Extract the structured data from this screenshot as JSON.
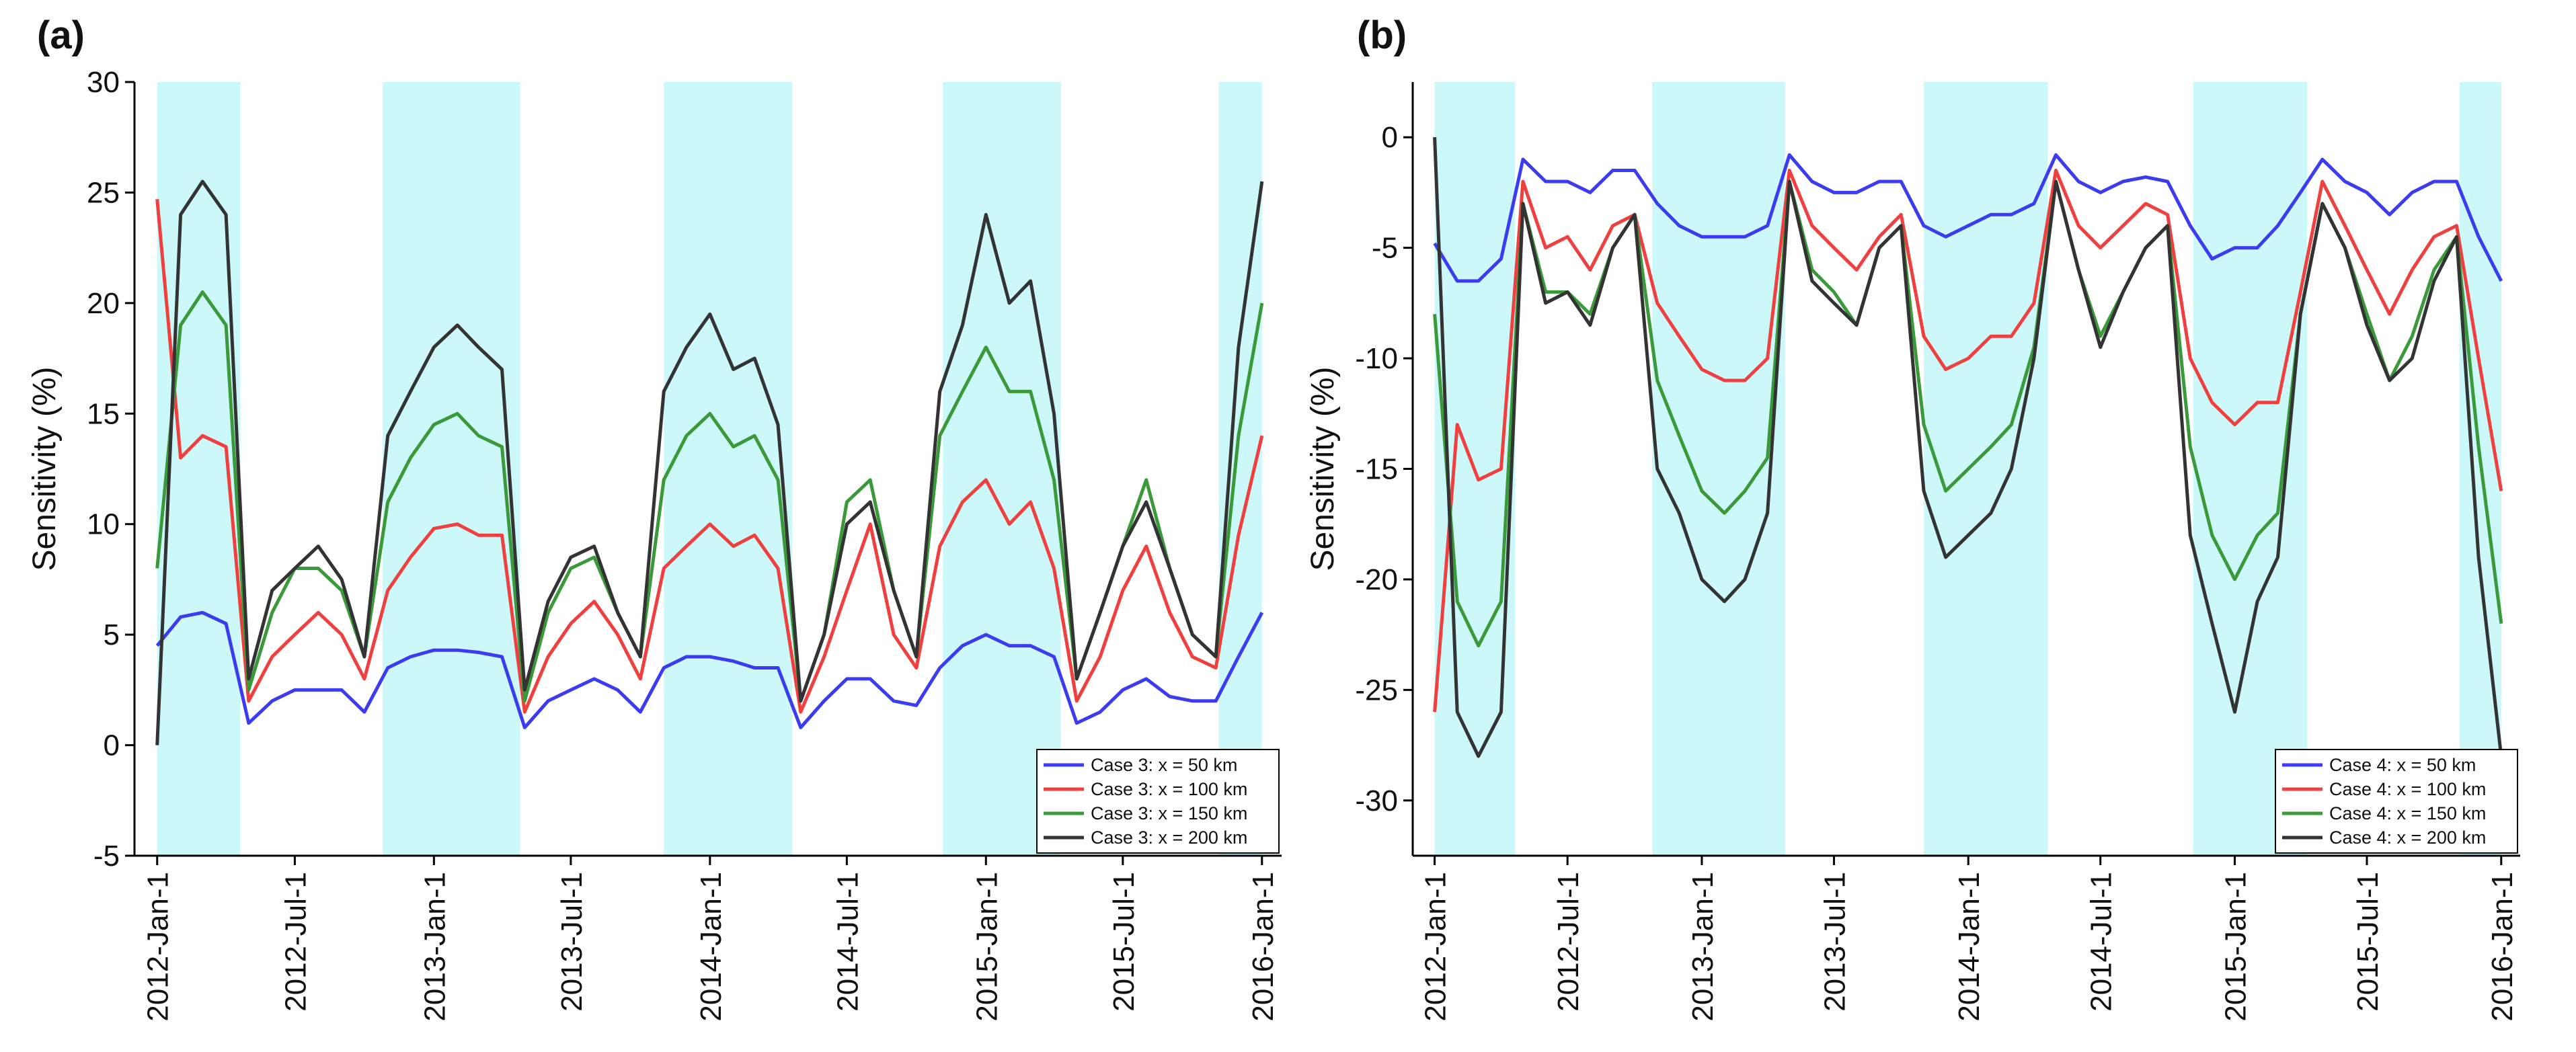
{
  "chart_data": [
    {
      "type": "line",
      "panel_label": "(a)",
      "y_label": "Sensitivity (%)",
      "xlim": [
        "2011-12-02",
        "2016-01-27"
      ],
      "ylim": [
        -5,
        30
      ],
      "yticks": [
        -5,
        0,
        5,
        10,
        15,
        20,
        25,
        30
      ],
      "xticks": [
        {
          "value": "2012-01-01",
          "label": "2012-Jan-1"
        },
        {
          "value": "2012-07-01",
          "label": "2012-Jul-1"
        },
        {
          "value": "2013-01-01",
          "label": "2013-Jan-1"
        },
        {
          "value": "2013-07-01",
          "label": "2013-Jul-1"
        },
        {
          "value": "2014-01-01",
          "label": "2014-Jan-1"
        },
        {
          "value": "2014-07-01",
          "label": "2014-Jul-1"
        },
        {
          "value": "2015-01-01",
          "label": "2015-Jan-1"
        },
        {
          "value": "2015-07-01",
          "label": "2015-Jul-1"
        },
        {
          "value": "2016-01-01",
          "label": "2016-Jan-1"
        }
      ],
      "shade_color": "#cdf8fa",
      "shaded_periods": [
        [
          "2012-01-01",
          "2012-04-20"
        ],
        [
          "2012-10-25",
          "2013-04-25"
        ],
        [
          "2013-11-01",
          "2014-04-20"
        ],
        [
          "2014-11-05",
          "2015-04-10"
        ],
        [
          "2015-11-05",
          "2016-01-01"
        ]
      ],
      "legend": "lower right",
      "x": [
        "2012-01-01",
        "2012-02-01",
        "2012-03-01",
        "2012-04-01",
        "2012-05-01",
        "2012-06-01",
        "2012-07-01",
        "2012-08-01",
        "2012-09-01",
        "2012-10-01",
        "2012-11-01",
        "2012-12-01",
        "2013-01-01",
        "2013-02-01",
        "2013-03-01",
        "2013-04-01",
        "2013-05-01",
        "2013-06-01",
        "2013-07-01",
        "2013-08-01",
        "2013-09-01",
        "2013-10-01",
        "2013-11-01",
        "2013-12-01",
        "2014-01-01",
        "2014-02-01",
        "2014-03-01",
        "2014-04-01",
        "2014-05-01",
        "2014-06-01",
        "2014-07-01",
        "2014-08-01",
        "2014-09-01",
        "2014-10-01",
        "2014-11-01",
        "2014-12-01",
        "2015-01-01",
        "2015-02-01",
        "2015-03-01",
        "2015-04-01",
        "2015-05-01",
        "2015-06-01",
        "2015-07-01",
        "2015-08-01",
        "2015-09-01",
        "2015-10-01",
        "2015-11-01",
        "2015-12-01",
        "2016-01-01"
      ],
      "series": [
        {
          "name": "Case 3: x = 50 km",
          "color": "#3b3bf2",
          "values": [
            4.5,
            5.8,
            6,
            5.5,
            1,
            2,
            2.5,
            2.5,
            2.5,
            1.5,
            3.5,
            4,
            4.3,
            4.3,
            4.2,
            4,
            0.8,
            2,
            2.5,
            3,
            2.5,
            1.5,
            3.5,
            4,
            4,
            3.8,
            3.5,
            3.5,
            0.8,
            2,
            3,
            3,
            2,
            1.8,
            3.5,
            4.5,
            5,
            4.5,
            4.5,
            4,
            1,
            1.5,
            2.5,
            3,
            2.2,
            2,
            2,
            4,
            6
          ]
        },
        {
          "name": "Case 3: x = 100 km",
          "color": "#ef3f3f",
          "values": [
            24.7,
            13,
            14,
            13.5,
            2,
            4,
            5,
            6,
            5,
            3,
            7,
            8.5,
            9.8,
            10,
            9.5,
            9.5,
            1.5,
            4,
            5.5,
            6.5,
            5,
            3,
            8,
            9,
            10,
            9,
            9.5,
            8,
            1.5,
            4,
            7,
            10,
            5,
            3.5,
            9,
            11,
            12,
            10,
            11,
            8,
            2,
            4,
            7,
            9,
            6,
            4,
            3.5,
            9.5,
            14
          ]
        },
        {
          "name": "Case 3: x = 150 km",
          "color": "#3a9a3a",
          "values": [
            8,
            19,
            20.5,
            19,
            2.5,
            6,
            8,
            8,
            7,
            4,
            11,
            13,
            14.5,
            15,
            14,
            13.5,
            2,
            6,
            8,
            8.5,
            6,
            4,
            12,
            14,
            15,
            13.5,
            14,
            12,
            2,
            5,
            11,
            12,
            7,
            4,
            14,
            16,
            18,
            16,
            16,
            12,
            3,
            6,
            9,
            12,
            8,
            5,
            4,
            14,
            20
          ]
        },
        {
          "name": "Case 3: x = 200 km",
          "color": "#333333",
          "values": [
            0,
            24,
            25.5,
            24,
            3,
            7,
            8,
            9,
            7.5,
            4,
            14,
            16,
            18,
            19,
            18,
            17,
            2.5,
            6.5,
            8.5,
            9,
            6,
            4,
            16,
            18,
            19.5,
            17,
            17.5,
            14.5,
            2,
            5,
            10,
            11,
            7,
            4,
            16,
            19,
            24,
            20,
            21,
            15,
            3,
            6,
            9,
            11,
            8,
            5,
            4,
            18,
            25.5
          ]
        }
      ]
    },
    {
      "type": "line",
      "panel_label": "(b)",
      "y_label": "Sensitivity (%)",
      "xlim": [
        "2011-12-02",
        "2016-01-27"
      ],
      "ylim": [
        -32.5,
        2.5
      ],
      "yticks": [
        -30,
        -25,
        -20,
        -15,
        -10,
        -5,
        0
      ],
      "xticks": [
        {
          "value": "2012-01-01",
          "label": "2012-Jan-1"
        },
        {
          "value": "2012-07-01",
          "label": "2012-Jul-1"
        },
        {
          "value": "2013-01-01",
          "label": "2013-Jan-1"
        },
        {
          "value": "2013-07-01",
          "label": "2013-Jul-1"
        },
        {
          "value": "2014-01-01",
          "label": "2014-Jan-1"
        },
        {
          "value": "2014-07-01",
          "label": "2014-Jul-1"
        },
        {
          "value": "2015-01-01",
          "label": "2015-Jan-1"
        },
        {
          "value": "2015-07-01",
          "label": "2015-Jul-1"
        },
        {
          "value": "2016-01-01",
          "label": "2016-Jan-1"
        }
      ],
      "shade_color": "#cdf8fa",
      "shaded_periods": [
        [
          "2012-01-01",
          "2012-04-20"
        ],
        [
          "2012-10-25",
          "2013-04-25"
        ],
        [
          "2013-11-01",
          "2014-04-20"
        ],
        [
          "2014-11-05",
          "2015-04-10"
        ],
        [
          "2015-11-05",
          "2016-01-01"
        ]
      ],
      "legend": "lower right",
      "x": [
        "2012-01-01",
        "2012-02-01",
        "2012-03-01",
        "2012-04-01",
        "2012-05-01",
        "2012-06-01",
        "2012-07-01",
        "2012-08-01",
        "2012-09-01",
        "2012-10-01",
        "2012-11-01",
        "2012-12-01",
        "2013-01-01",
        "2013-02-01",
        "2013-03-01",
        "2013-04-01",
        "2013-05-01",
        "2013-06-01",
        "2013-07-01",
        "2013-08-01",
        "2013-09-01",
        "2013-10-01",
        "2013-11-01",
        "2013-12-01",
        "2014-01-01",
        "2014-02-01",
        "2014-03-01",
        "2014-04-01",
        "2014-05-01",
        "2014-06-01",
        "2014-07-01",
        "2014-08-01",
        "2014-09-01",
        "2014-10-01",
        "2014-11-01",
        "2014-12-01",
        "2015-01-01",
        "2015-02-01",
        "2015-03-01",
        "2015-04-01",
        "2015-05-01",
        "2015-06-01",
        "2015-07-01",
        "2015-08-01",
        "2015-09-01",
        "2015-10-01",
        "2015-11-01",
        "2015-12-01",
        "2016-01-01"
      ],
      "series": [
        {
          "name": "Case 4: x = 50 km",
          "color": "#3b3bf2",
          "values": [
            -4.8,
            -6.5,
            -6.5,
            -5.5,
            -1,
            -2,
            -2,
            -2.5,
            -1.5,
            -1.5,
            -3,
            -4,
            -4.5,
            -4.5,
            -4.5,
            -4,
            -0.8,
            -2,
            -2.5,
            -2.5,
            -2,
            -2,
            -4,
            -4.5,
            -4,
            -3.5,
            -3.5,
            -3,
            -0.8,
            -2,
            -2.5,
            -2,
            -1.8,
            -2,
            -4,
            -5.5,
            -5,
            -5,
            -4,
            -2.5,
            -1,
            -2,
            -2.5,
            -3.5,
            -2.5,
            -2,
            -2,
            -4.5,
            -6.5
          ]
        },
        {
          "name": "Case 4: x = 100 km",
          "color": "#ef3f3f",
          "values": [
            -26,
            -13,
            -15.5,
            -15,
            -2,
            -5,
            -4.5,
            -6,
            -4,
            -3.5,
            -7.5,
            -9,
            -10.5,
            -11,
            -11,
            -10,
            -1.5,
            -4,
            -5,
            -6,
            -4.5,
            -3.5,
            -9,
            -10.5,
            -10,
            -9,
            -9,
            -7.5,
            -1.5,
            -4,
            -5,
            -4,
            -3,
            -3.5,
            -10,
            -12,
            -13,
            -12,
            -12,
            -7,
            -2,
            -4,
            -6,
            -8,
            -6,
            -4.5,
            -4,
            -10,
            -16
          ]
        },
        {
          "name": "Case 4: x = 150 km",
          "color": "#3a9a3a",
          "values": [
            -8,
            -21,
            -23,
            -21,
            -3,
            -7,
            -7,
            -8,
            -5,
            -3.5,
            -11,
            -13.5,
            -16,
            -17,
            -16,
            -14.5,
            -2,
            -6,
            -7,
            -8.5,
            -5,
            -4,
            -13,
            -16,
            -15,
            -14,
            -13,
            -9.5,
            -2,
            -6,
            -9,
            -7,
            -5,
            -4,
            -14,
            -18,
            -20,
            -18,
            -17,
            -8,
            -3,
            -5,
            -8,
            -11,
            -9,
            -6,
            -4.5,
            -14,
            -22
          ]
        },
        {
          "name": "Case 4: x = 200 km",
          "color": "#333333",
          "values": [
            0,
            -26,
            -28,
            -26,
            -3,
            -7.5,
            -7,
            -8.5,
            -5,
            -3.5,
            -15,
            -17,
            -20,
            -21,
            -20,
            -17,
            -2,
            -6.5,
            -7.5,
            -8.5,
            -5,
            -4,
            -16,
            -19,
            -18,
            -17,
            -15,
            -10,
            -2,
            -6,
            -9.5,
            -7,
            -5,
            -4,
            -18,
            -22,
            -26,
            -21,
            -19,
            -8,
            -3,
            -5,
            -8.5,
            -11,
            -10,
            -6.5,
            -4.5,
            -19,
            -28
          ]
        }
      ]
    }
  ]
}
